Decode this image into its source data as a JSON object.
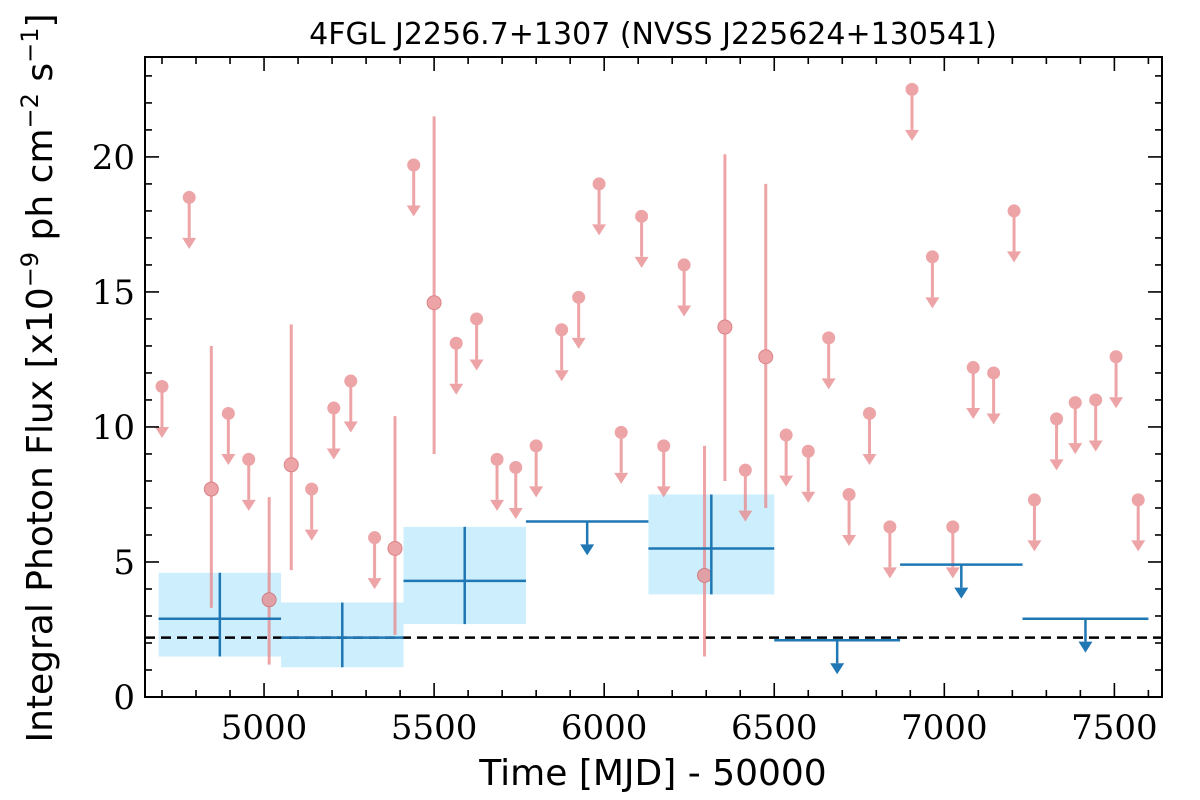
{
  "chart_data": {
    "type": "scatter",
    "title": "4FGL J2256.7+1307 (NVSS J225624+130541)",
    "xlabel": "Time [MJD] - 50000",
    "ylabel": "Integral Photon Flux [x10^-9 ph cm^-2 s^-1]",
    "xlim": [
      4650,
      7640
    ],
    "ylim": [
      0,
      23.7
    ],
    "xticks": [
      5000,
      5500,
      6000,
      6500,
      7000,
      7500
    ],
    "xtick_labels": [
      "5000",
      "5500",
      "6000",
      "6500",
      "7000",
      "7500"
    ],
    "yticks": [
      0,
      5,
      10,
      15,
      20
    ],
    "ytick_labels": [
      "0",
      "5",
      "10",
      "15",
      "20"
    ],
    "grid": false,
    "legend": "none",
    "colors": {
      "short_bins": "#e8868a",
      "long_bins": "#1f77b4",
      "long_bins_band": "#cdeefc",
      "reference_line": "#000000"
    },
    "reference_line": {
      "y": 2.2,
      "style": "dashed"
    },
    "series": [
      {
        "bin": "short",
        "upper_limits": [
          {
            "x": 4700,
            "y": 11.5
          },
          {
            "x": 4780,
            "y": 18.5
          },
          {
            "x": 4895,
            "y": 10.5
          },
          {
            "x": 4955,
            "y": 8.8
          },
          {
            "x": 5140,
            "y": 7.7
          },
          {
            "x": 5205,
            "y": 10.7
          },
          {
            "x": 5255,
            "y": 11.7
          },
          {
            "x": 5325,
            "y": 5.9
          },
          {
            "x": 5440,
            "y": 19.7
          },
          {
            "x": 5565,
            "y": 13.1
          },
          {
            "x": 5625,
            "y": 14.0
          },
          {
            "x": 5685,
            "y": 8.8
          },
          {
            "x": 5740,
            "y": 8.5
          },
          {
            "x": 5800,
            "y": 9.3
          },
          {
            "x": 5875,
            "y": 13.6
          },
          {
            "x": 5925,
            "y": 14.8
          },
          {
            "x": 5985,
            "y": 19.0
          },
          {
            "x": 6050,
            "y": 9.8
          },
          {
            "x": 6110,
            "y": 17.8
          },
          {
            "x": 6175,
            "y": 9.3
          },
          {
            "x": 6235,
            "y": 16.0
          },
          {
            "x": 6415,
            "y": 8.4
          },
          {
            "x": 6535,
            "y": 9.7
          },
          {
            "x": 6600,
            "y": 9.1
          },
          {
            "x": 6660,
            "y": 13.3
          },
          {
            "x": 6720,
            "y": 7.5
          },
          {
            "x": 6780,
            "y": 10.5
          },
          {
            "x": 6840,
            "y": 6.3
          },
          {
            "x": 6905,
            "y": 22.5
          },
          {
            "x": 6965,
            "y": 16.3
          },
          {
            "x": 7025,
            "y": 6.3
          },
          {
            "x": 7085,
            "y": 12.2
          },
          {
            "x": 7145,
            "y": 12.0
          },
          {
            "x": 7205,
            "y": 18.0
          },
          {
            "x": 7265,
            "y": 7.3
          },
          {
            "x": 7330,
            "y": 10.3
          },
          {
            "x": 7385,
            "y": 10.9
          },
          {
            "x": 7445,
            "y": 11.0
          },
          {
            "x": 7505,
            "y": 12.6
          },
          {
            "x": 7570,
            "y": 7.3
          }
        ],
        "detections": [
          {
            "x": 4845,
            "y": 7.7,
            "ylow": 3.3,
            "yhigh": 13.0
          },
          {
            "x": 5015,
            "y": 3.6,
            "ylow": 1.2,
            "yhigh": 7.4
          },
          {
            "x": 5080,
            "y": 8.6,
            "ylow": 4.7,
            "yhigh": 13.8
          },
          {
            "x": 5385,
            "y": 5.5,
            "ylow": 2.3,
            "yhigh": 10.4
          },
          {
            "x": 5500,
            "y": 14.6,
            "ylow": 9.0,
            "yhigh": 21.5
          },
          {
            "x": 6295,
            "y": 4.5,
            "ylow": 1.5,
            "yhigh": 9.3
          },
          {
            "x": 6355,
            "y": 13.7,
            "ylow": 8.0,
            "yhigh": 20.1
          },
          {
            "x": 6475,
            "y": 12.6,
            "ylow": 7.0,
            "yhigh": 19.0
          }
        ]
      },
      {
        "bin": "long",
        "detections": [
          {
            "x0": 4690,
            "x1": 5050,
            "x": 4870,
            "y": 2.9,
            "ylow": 1.5,
            "yhigh": 4.6,
            "band_low": 1.5,
            "band_high": 4.6
          },
          {
            "x0": 5050,
            "x1": 5410,
            "x": 5230,
            "y": 2.2,
            "ylow": 1.1,
            "yhigh": 3.5,
            "band_low": 1.1,
            "band_high": 3.5
          },
          {
            "x0": 5410,
            "x1": 5770,
            "x": 5590,
            "y": 4.3,
            "ylow": 2.7,
            "yhigh": 6.3,
            "band_low": 2.7,
            "band_high": 6.3
          },
          {
            "x0": 6130,
            "x1": 6500,
            "x": 6315,
            "y": 5.5,
            "ylow": 3.8,
            "yhigh": 7.5,
            "band_low": 3.8,
            "band_high": 7.5
          }
        ],
        "upper_limits": [
          {
            "x0": 5770,
            "x1": 6130,
            "x": 5950,
            "y": 6.5
          },
          {
            "x0": 6500,
            "x1": 6870,
            "x": 6685,
            "y": 2.1
          },
          {
            "x0": 6870,
            "x1": 7230,
            "x": 7050,
            "y": 4.9
          },
          {
            "x0": 7230,
            "x1": 7600,
            "x": 7415,
            "y": 2.9
          }
        ]
      }
    ]
  }
}
